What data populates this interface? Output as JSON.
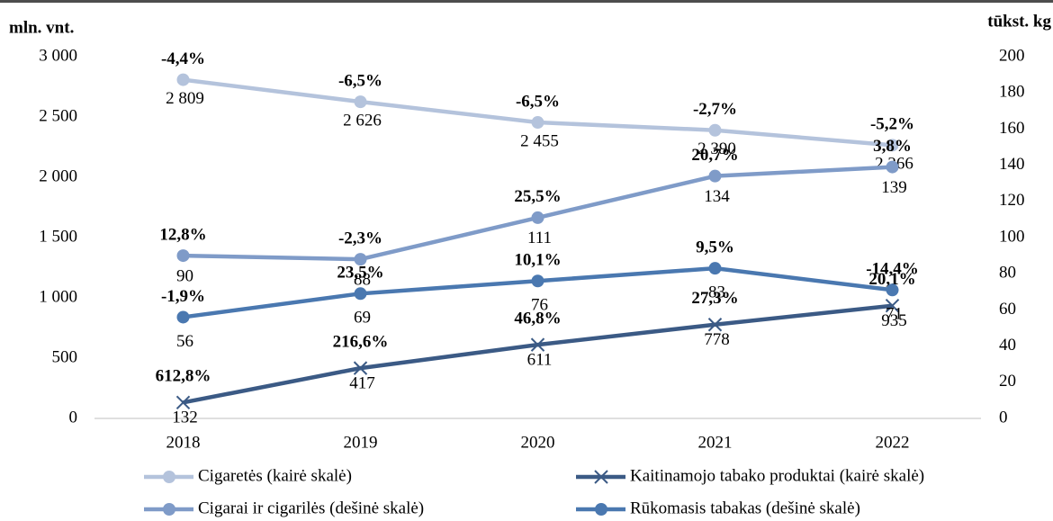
{
  "chart_data": {
    "type": "line",
    "y_label": "mln. vnt.",
    "y2_label": "tūkst. kg",
    "categories": [
      "2018",
      "2019",
      "2020",
      "2021",
      "2022"
    ],
    "ylim": [
      0,
      3000
    ],
    "yticks": [
      0,
      500,
      {
        "value": 1000,
        "label": "1 000"
      },
      {
        "value": 1500,
        "label": "1 500"
      },
      {
        "value": 2000,
        "label": "2 000"
      },
      {
        "value": 2500,
        "label": "2 500"
      },
      {
        "value": 3000,
        "label": "3 000"
      }
    ],
    "y2lim": [
      0,
      200
    ],
    "y2ticks": [
      0,
      20,
      40,
      60,
      80,
      100,
      120,
      140,
      160,
      180,
      200
    ],
    "series": [
      {
        "name": "Cigaretės (kairė skalė)",
        "color": "#b4c3dc",
        "marker": "circle",
        "values": [
          2809,
          2626,
          2455,
          2390,
          2266
        ],
        "value_labels": [
          "2 809",
          "2 626",
          "2 455",
          "2 390",
          "2 266"
        ],
        "changes": [
          "-4,4%",
          "-6,5%",
          "-6,5%",
          "-2,7%",
          "-5,2%"
        ]
      },
      {
        "name": "Kaitinamojo tabako produktai (kairė skalė)",
        "color": "#3b5a85",
        "marker": "x",
        "values": [
          132,
          417,
          611,
          778,
          935
        ],
        "changes": [
          "612,8%",
          "216,6%",
          "46,8%",
          "27,3%",
          "20,1%"
        ]
      },
      {
        "name": "Cigarai ir cigarilės (dešinė skalė)",
        "color": "#7f9bc8",
        "marker": "circle",
        "axis": "y2",
        "values": [
          90,
          88,
          111,
          134,
          139
        ],
        "changes": [
          "12,8%",
          "-2,3%",
          "25,5%",
          "20,7%",
          "3,8%"
        ]
      },
      {
        "name": "Rūkomasis tabakas  (dešinė skalė)",
        "color": "#4a78b0",
        "marker": "circle",
        "axis": "y2",
        "values": [
          56,
          69,
          76,
          83,
          71
        ],
        "changes": [
          "-1,9%",
          "23,5%",
          "10,1%",
          "9,5%",
          "-14,4%"
        ]
      }
    ]
  }
}
